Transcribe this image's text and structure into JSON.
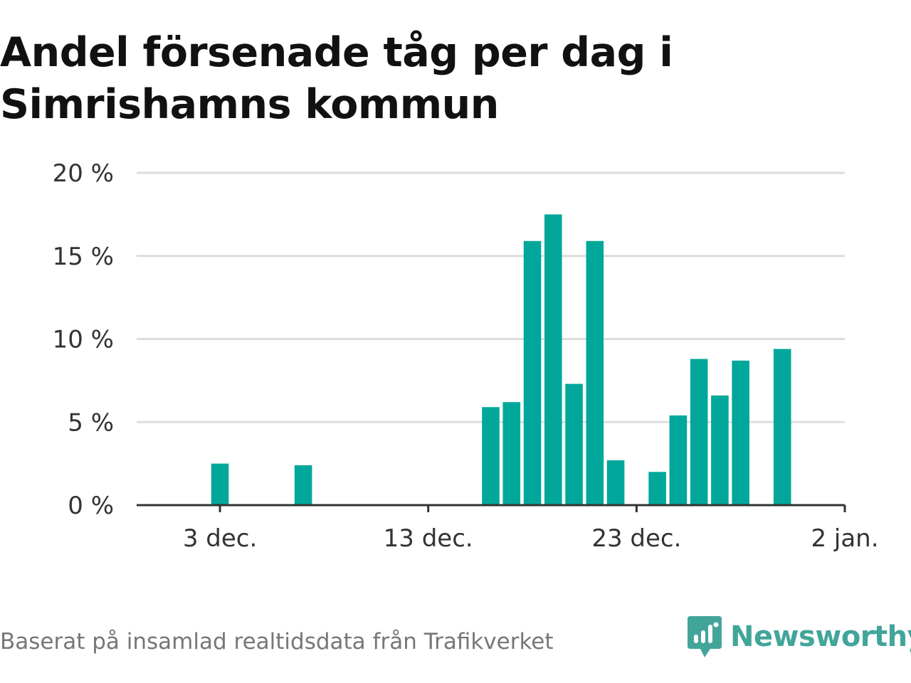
{
  "title": "Andel försenade tåg per dag i Simrishamns kommun",
  "footer": {
    "source": "Baserat på insamlad realtidsdata från Trafikverket",
    "brand": "Newsworthy",
    "logo_icon": "newsworthy-logo-icon"
  },
  "colors": {
    "bar": "#00a79a",
    "grid": "#dddddd",
    "axis": "#333333",
    "title": "#111111",
    "brand": "#42a59a",
    "source": "#777777"
  },
  "chart_data": {
    "type": "bar",
    "title": "Andel försenade tåg per dag i Simrishamns kommun",
    "xlabel": "",
    "ylabel": "",
    "unit": "%",
    "x": [
      "2020-12-03",
      "2020-12-07",
      "2020-12-16",
      "2020-12-17",
      "2020-12-18",
      "2020-12-19",
      "2020-12-20",
      "2020-12-21",
      "2020-12-22",
      "2020-12-24",
      "2020-12-25",
      "2020-12-26",
      "2020-12-27",
      "2020-12-28",
      "2020-12-30"
    ],
    "values": [
      2.5,
      2.4,
      5.9,
      6.2,
      15.9,
      17.5,
      7.3,
      15.9,
      2.7,
      2.0,
      5.4,
      8.8,
      6.6,
      8.7,
      9.4
    ],
    "xlim": [
      "2020-11-29",
      "2021-01-02"
    ],
    "ylim": [
      0,
      20
    ],
    "yticks": [
      0,
      5,
      10,
      15,
      20
    ],
    "ytick_labels": [
      "0 %",
      "5 %",
      "10 %",
      "15 %",
      "20 %"
    ],
    "xticks": [
      "2020-12-03",
      "2020-12-13",
      "2020-12-23",
      "2021-01-02"
    ],
    "xtick_labels": [
      "3 dec.",
      "13 dec.",
      "23 dec.",
      "2 jan."
    ],
    "grid": true,
    "legend": false
  }
}
